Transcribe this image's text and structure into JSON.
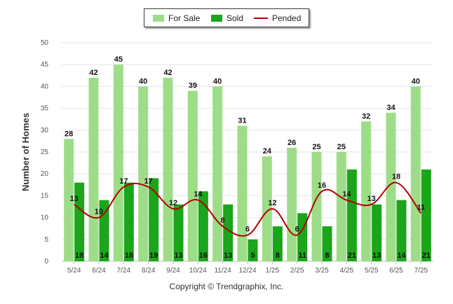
{
  "chart_data": {
    "type": "bar",
    "categories": [
      "5/24",
      "6/24",
      "7/24",
      "8/24",
      "9/24",
      "10/24",
      "11/24",
      "12/24",
      "1/25",
      "2/25",
      "3/25",
      "4/25",
      "5/25",
      "6/25",
      "7/25"
    ],
    "series": [
      {
        "name": "For Sale",
        "type": "bar",
        "color": "#9edd88",
        "values": [
          28,
          42,
          45,
          40,
          42,
          39,
          40,
          31,
          24,
          26,
          25,
          25,
          32,
          34,
          40
        ]
      },
      {
        "name": "Sold",
        "type": "bar",
        "color": "#1aa51a",
        "values": [
          18,
          14,
          18,
          19,
          13,
          16,
          13,
          5,
          8,
          11,
          8,
          21,
          13,
          14,
          21
        ]
      },
      {
        "name": "Pended",
        "type": "line",
        "color": "#b30000",
        "values": [
          13,
          10,
          17,
          17,
          12,
          14,
          8,
          6,
          12,
          6,
          16,
          14,
          13,
          18,
          11
        ]
      }
    ],
    "ylabel": "Number of Homes",
    "xlabel": "",
    "ylim": [
      0,
      50
    ],
    "yticks": [
      0,
      5,
      10,
      15,
      20,
      25,
      30,
      35,
      40,
      45,
      50
    ],
    "grid": true,
    "legend_position": "top-center"
  },
  "footer": "Copyright © Trendgraphix, Inc."
}
